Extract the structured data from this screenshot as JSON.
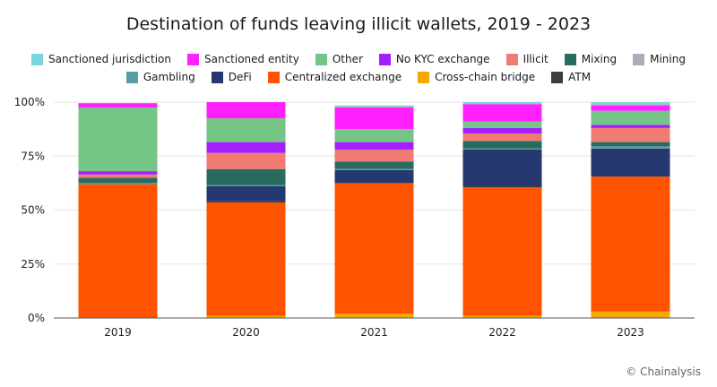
{
  "chart_data": {
    "type": "bar",
    "stacked": true,
    "title": "Destination of funds leaving illicit wallets, 2019 - 2023",
    "xlabel": "",
    "ylabel": "",
    "ylim": [
      0,
      100
    ],
    "yticks": [
      "0%",
      "25%",
      "50%",
      "75%",
      "100%"
    ],
    "categories": [
      "2019",
      "2020",
      "2021",
      "2022",
      "2023"
    ],
    "legend_position": "top",
    "series": [
      {
        "name": "Cross-chain bridge",
        "color": "#f5a800",
        "values": [
          0,
          1,
          2,
          1,
          3
        ]
      },
      {
        "name": "Centralized exchange",
        "color": "#ff5300",
        "values": [
          62,
          52.5,
          60.5,
          59.5,
          62.5
        ]
      },
      {
        "name": "ATM",
        "color": "#3c3c3c",
        "values": [
          0,
          0.5,
          0,
          0.5,
          0
        ]
      },
      {
        "name": "DeFi",
        "color": "#253870",
        "values": [
          0,
          7,
          6,
          17,
          13
        ]
      },
      {
        "name": "Gambling",
        "color": "#5a9ea5",
        "values": [
          0.5,
          0.5,
          0.5,
          0.5,
          1
        ]
      },
      {
        "name": "Mixing",
        "color": "#2a6b60",
        "values": [
          2.5,
          7.5,
          3.5,
          3.5,
          2
        ]
      },
      {
        "name": "Illicit",
        "color": "#ef7b73",
        "values": [
          1.5,
          7.5,
          5.5,
          3.5,
          6.5
        ]
      },
      {
        "name": "No KYC exchange",
        "color": "#a41fff",
        "values": [
          1.5,
          5,
          3.5,
          2.5,
          1.5
        ]
      },
      {
        "name": "Other",
        "color": "#74c586",
        "values": [
          29.5,
          11,
          6,
          3,
          6.5
        ]
      },
      {
        "name": "Sanctioned entity",
        "color": "#ff1fff",
        "values": [
          2,
          7.5,
          10,
          8,
          2.5
        ]
      },
      {
        "name": "Mining",
        "color": "#a9afb8",
        "values": [
          0,
          0,
          0.5,
          0.5,
          0.5
        ]
      },
      {
        "name": "Sanctioned jurisdiction",
        "color": "#7dd4dd",
        "values": [
          0,
          0,
          0.5,
          0.5,
          1
        ]
      }
    ],
    "legend_rows": [
      [
        "Sanctioned jurisdiction",
        "Sanctioned entity",
        "Other",
        "No KYC exchange",
        "Illicit",
        "Mixing",
        "Mining"
      ],
      [
        "Gambling",
        "DeFi",
        "Centralized exchange",
        "Cross-chain bridge",
        "ATM"
      ]
    ]
  },
  "footer": "© Chainalysis"
}
